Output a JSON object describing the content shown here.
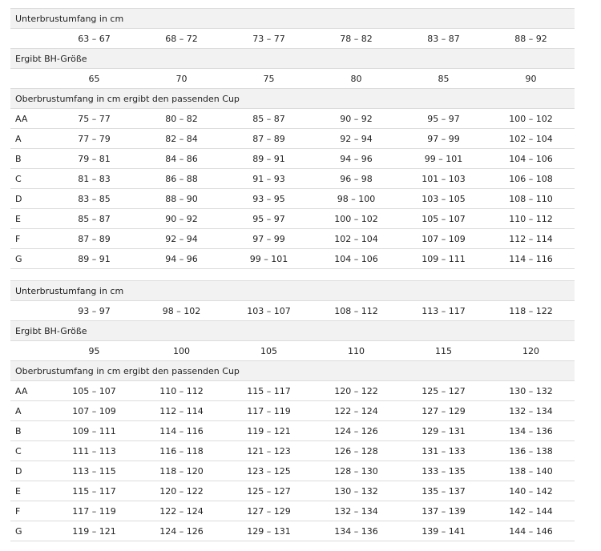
{
  "tables": [
    {
      "underbust_label": "Unterbrustumfang in cm",
      "underbust": [
        "63 – 67",
        "68 – 72",
        "73 – 77",
        "78 – 82",
        "83 – 87",
        "88 – 92"
      ],
      "size_label": "Ergibt BH-Größe",
      "sizes": [
        65,
        70,
        75,
        80,
        85,
        90
      ],
      "cup_label": "Oberbrustumfang in cm ergibt den passenden Cup",
      "rows": [
        {
          "cup": "AA",
          "values": [
            "75 – 77",
            "80 – 82",
            "85 – 87",
            "90 – 92",
            "95 – 97",
            "100 – 102"
          ]
        },
        {
          "cup": "A",
          "values": [
            "77 – 79",
            "82 – 84",
            "87 – 89",
            "92 – 94",
            "97 – 99",
            "102 – 104"
          ]
        },
        {
          "cup": "B",
          "values": [
            "79 – 81",
            "84 – 86",
            "89 – 91",
            "94 – 96",
            "99 – 101",
            "104 – 106"
          ]
        },
        {
          "cup": "C",
          "values": [
            "81 – 83",
            "86 – 88",
            "91 – 93",
            "96 – 98",
            "101 – 103",
            "106 – 108"
          ]
        },
        {
          "cup": "D",
          "values": [
            "83 – 85",
            "88 – 90",
            "93 – 95",
            "98 – 100",
            "103 – 105",
            "108 – 110"
          ]
        },
        {
          "cup": "E",
          "values": [
            "85 – 87",
            "90 – 92",
            "95 – 97",
            "100 – 102",
            "105 – 107",
            "110 – 112"
          ]
        },
        {
          "cup": "F",
          "values": [
            "87 – 89",
            "92 – 94",
            "97 – 99",
            "102 – 104",
            "107 – 109",
            "112 – 114"
          ]
        },
        {
          "cup": "G",
          "values": [
            "89 – 91",
            "94 – 96",
            "99 – 101",
            "104 – 106",
            "109 – 111",
            "114 – 116"
          ]
        }
      ]
    },
    {
      "underbust_label": "Unterbrustumfang in cm",
      "underbust": [
        "93 – 97",
        "98 – 102",
        "103 – 107",
        "108 – 112",
        "113 – 117",
        "118 – 122"
      ],
      "size_label": "Ergibt BH-Größe",
      "sizes": [
        95,
        100,
        105,
        110,
        115,
        120
      ],
      "cup_label": "Oberbrustumfang in cm ergibt den passenden Cup",
      "rows": [
        {
          "cup": "AA",
          "values": [
            "105 – 107",
            "110 – 112",
            "115 – 117",
            "120 – 122",
            "125 – 127",
            "130 – 132"
          ]
        },
        {
          "cup": "A",
          "values": [
            "107 – 109",
            "112 – 114",
            "117 – 119",
            "122 – 124",
            "127 – 129",
            "132 – 134"
          ]
        },
        {
          "cup": "B",
          "values": [
            "109 – 111",
            "114 – 116",
            "119 – 121",
            "124 – 126",
            "129 – 131",
            "134 – 136"
          ]
        },
        {
          "cup": "C",
          "values": [
            "111 – 113",
            "116 – 118",
            "121 – 123",
            "126 – 128",
            "131 – 133",
            "136 – 138"
          ]
        },
        {
          "cup": "D",
          "values": [
            "113 – 115",
            "118 – 120",
            "123 – 125",
            "128 – 130",
            "133 – 135",
            "138 – 140"
          ]
        },
        {
          "cup": "E",
          "values": [
            "115 – 117",
            "120 – 122",
            "125 – 127",
            "130 – 132",
            "135 – 137",
            "140 – 142"
          ]
        },
        {
          "cup": "F",
          "values": [
            "117 – 119",
            "122 – 124",
            "127 – 129",
            "132 – 134",
            "137 – 139",
            "142 – 144"
          ]
        },
        {
          "cup": "G",
          "values": [
            "119 – 121",
            "124 – 126",
            "129 – 131",
            "134 – 136",
            "139 – 141",
            "144 – 146"
          ]
        }
      ]
    }
  ]
}
